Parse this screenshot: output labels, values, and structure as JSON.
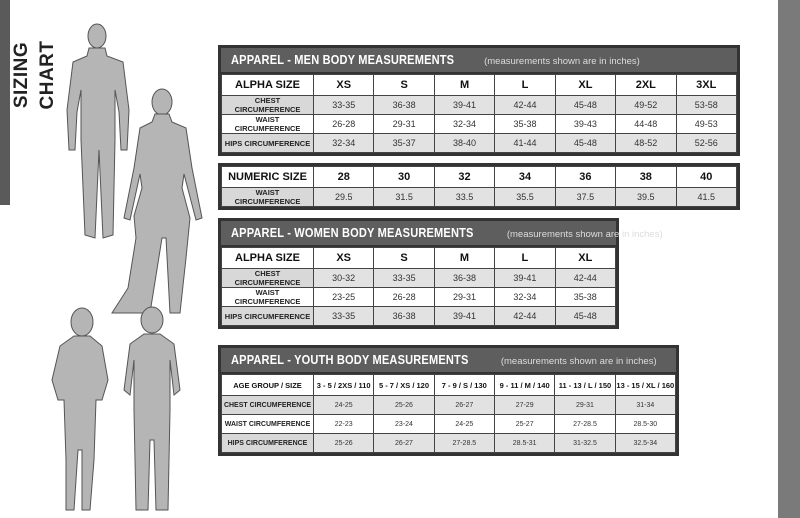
{
  "page_title": "SIZING CHART",
  "colors": {
    "header_bg": "#5e5e5e",
    "border": "#333333",
    "row_alt": "#e2e2e2",
    "side_bar": "#7a7a7a"
  },
  "men": {
    "title": "APPAREL - MEN BODY MEASUREMENTS",
    "subtitle": "(measurements shown are in inches)",
    "header": [
      "ALPHA SIZE",
      "XS",
      "S",
      "M",
      "L",
      "XL",
      "2XL",
      "3XL"
    ],
    "rows": [
      [
        "CHEST CIRCUMFERENCE",
        "33-35",
        "36-38",
        "39-41",
        "42-44",
        "45-48",
        "49-52",
        "53-58"
      ],
      [
        "WAIST CIRCUMFERENCE",
        "26-28",
        "29-31",
        "32-34",
        "35-38",
        "39-43",
        "44-48",
        "49-53"
      ],
      [
        "HIPS CIRCUMFERENCE",
        "32-34",
        "35-37",
        "38-40",
        "41-44",
        "45-48",
        "48-52",
        "52-56"
      ]
    ]
  },
  "numeric": {
    "header": [
      "NUMERIC SIZE",
      "28",
      "30",
      "32",
      "34",
      "36",
      "38",
      "40"
    ],
    "rows": [
      [
        "WAIST CIRCUMFERENCE",
        "29.5",
        "31.5",
        "33.5",
        "35.5",
        "37.5",
        "39.5",
        "41.5"
      ]
    ]
  },
  "women": {
    "title": "APPAREL - WOMEN BODY MEASUREMENTS",
    "subtitle": "(measurements shown are in inches)",
    "header": [
      "ALPHA SIZE",
      "XS",
      "S",
      "M",
      "L",
      "XL"
    ],
    "rows": [
      [
        "CHEST CIRCUMFERENCE",
        "30-32",
        "33-35",
        "36-38",
        "39-41",
        "42-44"
      ],
      [
        "WAIST CIRCUMFERENCE",
        "23-25",
        "26-28",
        "29-31",
        "32-34",
        "35-38"
      ],
      [
        "HIPS CIRCUMFERENCE",
        "33-35",
        "36-38",
        "39-41",
        "42-44",
        "45-48"
      ]
    ]
  },
  "youth": {
    "title": "APPAREL - YOUTH BODY MEASUREMENTS",
    "subtitle": "(measurements shown are in inches)",
    "header": [
      "AGE GROUP / SIZE",
      "3 - 5 / 2XS / 110",
      "5 - 7 / XS / 120",
      "7 - 9 / S / 130",
      "9 - 11 / M / 140",
      "11 - 13 / L / 150",
      "13 - 15 / XL / 160"
    ],
    "rows": [
      [
        "CHEST CIRCUMFERENCE",
        "24-25",
        "25-26",
        "26-27",
        "27-29",
        "29-31",
        "31-34"
      ],
      [
        "WAIST CIRCUMFERENCE",
        "22-23",
        "23-24",
        "24-25",
        "25-27",
        "27-28.5",
        "28.5-30"
      ],
      [
        "HIPS CIRCUMFERENCE",
        "25-26",
        "26-27",
        "27-28.5",
        "28.5-31",
        "31-32.5",
        "32.5-34"
      ]
    ]
  }
}
